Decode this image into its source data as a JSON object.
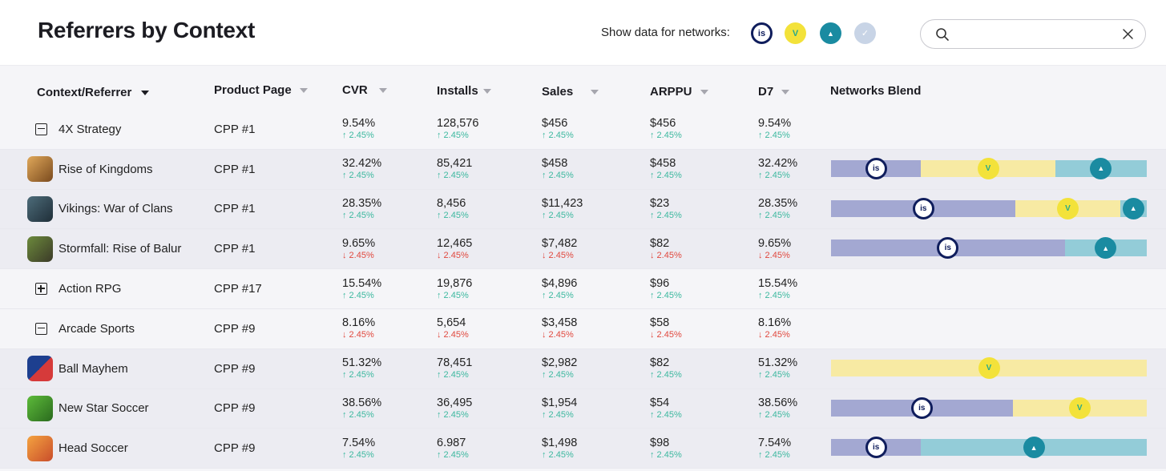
{
  "header": {
    "title": "Referrers by Context",
    "networks_label": "Show data for networks:",
    "search": {
      "value": "",
      "placeholder": ""
    }
  },
  "networks": [
    {
      "key": "is",
      "glyph": "is",
      "color": "#0f1d5c",
      "text_color": "#0f1d5c",
      "bg": "#ffffff"
    },
    {
      "key": "v",
      "glyph": "V",
      "color": "#f3e23a",
      "text_color": "#28a98b",
      "bg": "#f3e23a"
    },
    {
      "key": "a",
      "glyph": "▲",
      "color": "#1a8ba1",
      "text_color": "#ffffff",
      "bg": "#1a8ba1"
    },
    {
      "key": "x",
      "glyph": "✓",
      "color": "#c8d4e6",
      "text_color": "#ffffff",
      "bg": "#c8d4e6"
    }
  ],
  "columns": [
    "Context/Referrer",
    "Product Page",
    "CVR",
    "Installs",
    "Sales",
    "ARPPU",
    "D7",
    "Networks Blend"
  ],
  "segment_colors": {
    "is": "#a3a8d2",
    "v": "#f7eaa3",
    "a": "#93ccd8"
  },
  "rows": [
    {
      "type": "group",
      "toggle": "minus",
      "name": "4X Strategy",
      "product_page": "CPP #1",
      "cvr": "9.54%",
      "cvr_d": "2.45%",
      "cvr_up": true,
      "installs": "128,576",
      "installs_d": "2.45%",
      "installs_up": true,
      "sales": "$456",
      "sales_d": "2.45%",
      "sales_up": true,
      "arppu": "$456",
      "arppu_d": "2.45%",
      "arppu_up": true,
      "d7": "9.54%",
      "d7_d": "2.45%",
      "d7_up": true,
      "blend": []
    },
    {
      "type": "child",
      "icon": "rise-of-kingdoms",
      "name": "Rise of Kingdoms",
      "product_page": "CPP #1",
      "cvr": "32.42%",
      "cvr_d": "2.45%",
      "cvr_up": true,
      "installs": "85,421",
      "installs_d": "2.45%",
      "installs_up": true,
      "sales": "$458",
      "sales_d": "2.45%",
      "sales_up": true,
      "arppu": "$458",
      "arppu_d": "2.45%",
      "arppu_up": true,
      "d7": "32.42%",
      "d7_d": "2.45%",
      "d7_up": true,
      "blend": [
        {
          "net": "is",
          "share": 0.285
        },
        {
          "net": "v",
          "share": 0.425
        },
        {
          "net": "a",
          "share": 0.29
        }
      ]
    },
    {
      "type": "child",
      "icon": "vikings",
      "name": "Vikings: War of Clans",
      "product_page": "CPP #1",
      "cvr": "28.35%",
      "cvr_d": "2.45%",
      "cvr_up": true,
      "installs": "8,456",
      "installs_d": "2.45%",
      "installs_up": true,
      "sales": "$11,423",
      "sales_d": "2.45%",
      "sales_up": true,
      "arppu": "$23",
      "arppu_d": "2.45%",
      "arppu_up": true,
      "d7": "28.35%",
      "d7_d": "2.45%",
      "d7_up": true,
      "blend": [
        {
          "net": "is",
          "share": 0.585
        },
        {
          "net": "v",
          "share": 0.33
        },
        {
          "net": "a",
          "share": 0.085
        }
      ]
    },
    {
      "type": "child",
      "icon": "stormfall",
      "name": "Stormfall: Rise of Balur",
      "product_page": "CPP #1",
      "cvr": "9.65%",
      "cvr_d": "2.45%",
      "cvr_up": false,
      "installs": "12,465",
      "installs_d": "2.45%",
      "installs_up": false,
      "sales": "$7,482",
      "sales_d": "2.45%",
      "sales_up": false,
      "arppu": "$82",
      "arppu_d": "2.45%",
      "arppu_up": false,
      "d7": "9.65%",
      "d7_d": "2.45%",
      "d7_up": false,
      "blend": [
        {
          "net": "is",
          "share": 0.74
        },
        {
          "net": "a",
          "share": 0.26
        }
      ]
    },
    {
      "type": "group",
      "toggle": "plus",
      "name": "Action RPG",
      "product_page": "CPP #17",
      "cvr": "15.54%",
      "cvr_d": "2.45%",
      "cvr_up": true,
      "installs": "19,876",
      "installs_d": "2.45%",
      "installs_up": true,
      "sales": "$4,896",
      "sales_d": "2.45%",
      "sales_up": true,
      "arppu": "$96",
      "arppu_d": "2.45%",
      "arppu_up": true,
      "d7": "15.54%",
      "d7_d": "2.45%",
      "d7_up": true,
      "blend": []
    },
    {
      "type": "group",
      "toggle": "minus",
      "name": "Arcade Sports",
      "product_page": "CPP #9",
      "cvr": "8.16%",
      "cvr_d": "2.45%",
      "cvr_up": false,
      "installs": "5,654",
      "installs_d": "2.45%",
      "installs_up": false,
      "sales": "$3,458",
      "sales_d": "2.45%",
      "sales_up": false,
      "arppu": "$58",
      "arppu_d": "2.45%",
      "arppu_up": false,
      "d7": "8.16%",
      "d7_d": "2.45%",
      "d7_up": false,
      "blend": []
    },
    {
      "type": "child",
      "icon": "ball-mayhem",
      "name": "Ball Mayhem",
      "product_page": "CPP #9",
      "cvr": "51.32%",
      "cvr_d": "2.45%",
      "cvr_up": true,
      "installs": "78,451",
      "installs_d": "2.45%",
      "installs_up": true,
      "sales": "$2,982",
      "sales_d": "2.45%",
      "sales_up": true,
      "arppu": "$82",
      "arppu_d": "2.45%",
      "arppu_up": true,
      "d7": "51.32%",
      "d7_d": "2.45%",
      "d7_up": true,
      "blend": [
        {
          "net": "v",
          "share": 1.0
        }
      ]
    },
    {
      "type": "child",
      "icon": "new-star-soccer",
      "name": "New Star Soccer",
      "product_page": "CPP #9",
      "cvr": "38.56%",
      "cvr_d": "2.45%",
      "cvr_up": true,
      "installs": "36,495",
      "installs_d": "2.45%",
      "installs_up": true,
      "sales": "$1,954",
      "sales_d": "2.45%",
      "sales_up": true,
      "arppu": "$54",
      "arppu_d": "2.45%",
      "arppu_up": true,
      "d7": "38.56%",
      "d7_d": "2.45%",
      "d7_up": true,
      "blend": [
        {
          "net": "is",
          "share": 0.575
        },
        {
          "net": "v",
          "share": 0.425
        }
      ]
    },
    {
      "type": "child",
      "icon": "head-soccer",
      "name": "Head Soccer",
      "product_page": "CPP #9",
      "cvr": "7.54%",
      "cvr_d": "2.45%",
      "cvr_up": true,
      "installs": "6.987",
      "installs_d": "2.45%",
      "installs_up": true,
      "sales": "$1,498",
      "sales_d": "2.45%",
      "sales_up": true,
      "arppu": "$98",
      "arppu_d": "2.45%",
      "arppu_up": true,
      "d7": "7.54%",
      "d7_d": "2.45%",
      "d7_up": true,
      "blend": [
        {
          "net": "is",
          "share": 0.285
        },
        {
          "net": "a",
          "share": 0.715
        }
      ]
    }
  ]
}
